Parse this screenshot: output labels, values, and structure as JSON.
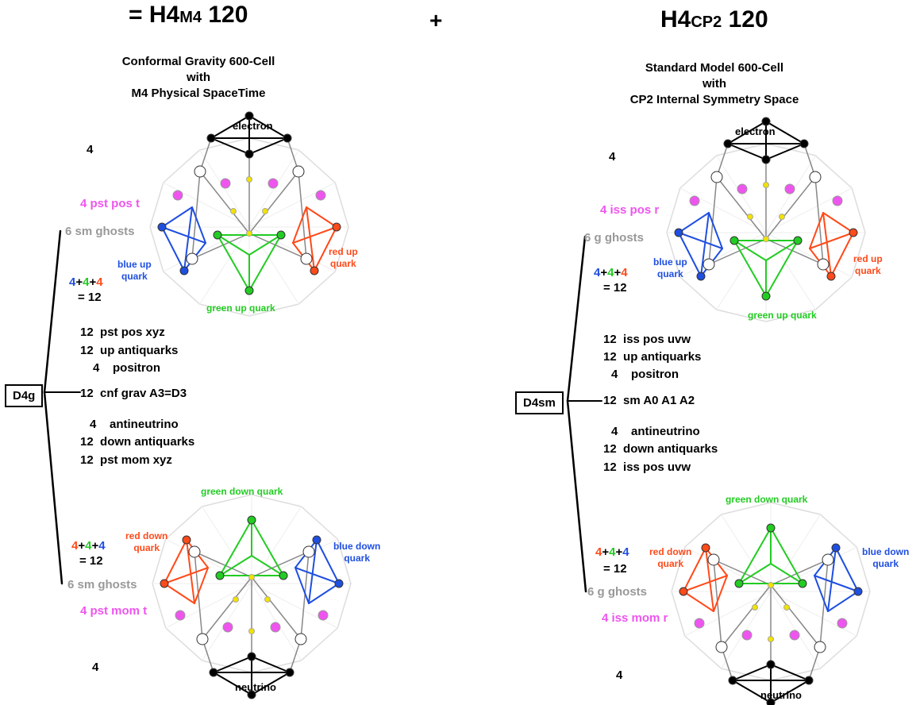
{
  "header": {
    "left_prefix": "= H4",
    "left_sub": "M4",
    "left_suffix": " 120",
    "plus": "+",
    "right_prefix": "H4",
    "right_sub": "CP2",
    "right_suffix": " 120"
  },
  "left": {
    "title_lines": [
      "Conformal Gravity 600-Cell",
      "with",
      "M4 Physical SpaceTime"
    ],
    "top_count": "4",
    "top_vertex": "electron",
    "pos_t": "4 pst pos t",
    "ghosts_top": "6 sm ghosts",
    "blue_up": [
      "blue up",
      "quark"
    ],
    "red_up": [
      "red up",
      "quark"
    ],
    "green_up": "green up quark",
    "sum_top": {
      "a": "4",
      "plus1": "+",
      "b": "4",
      "plus2": "+",
      "c": "4",
      "eq": "= 12"
    },
    "list_top": [
      {
        "n": "12",
        "t": "pst pos xyz"
      },
      {
        "n": "12",
        "t": "up antiquarks"
      },
      {
        "n": "4",
        "t": "positron"
      }
    ],
    "box": "D4g",
    "center": {
      "n": "12",
      "t": "cnf grav A3=D3"
    },
    "list_bottom": [
      {
        "n": "4",
        "t": "antineutrino"
      },
      {
        "n": "12",
        "t": "down antiquarks"
      },
      {
        "n": "12",
        "t": "pst mom xyz"
      }
    ],
    "green_down": "green down quark",
    "red_down": [
      "red down",
      "quark"
    ],
    "blue_down": [
      "blue down",
      "quark"
    ],
    "sum_bottom": {
      "a": "4",
      "plus1": "+",
      "b": "4",
      "plus2": "+",
      "c": "4",
      "eq": "= 12"
    },
    "ghosts_bottom": "6 sm ghosts",
    "mom_t": "4 pst mom t",
    "bottom_count": "4",
    "bottom_vertex": "neutrino"
  },
  "right": {
    "title_lines": [
      "Standard Model 600-Cell",
      "with",
      "CP2 Internal Symmetry Space"
    ],
    "top_count": "4",
    "top_vertex": "electron",
    "pos_r": "4 iss pos r",
    "ghosts_top": "6 g ghosts",
    "blue_up": [
      "blue up",
      "quark"
    ],
    "red_up": [
      "red up",
      "quark"
    ],
    "green_up": "green up quark",
    "sum_top": {
      "a": "4",
      "plus1": "+",
      "b": "4",
      "plus2": "+",
      "c": "4",
      "eq": "= 12"
    },
    "list_top": [
      {
        "n": "12",
        "t": "iss pos uvw"
      },
      {
        "n": "12",
        "t": "up antiquarks"
      },
      {
        "n": "4",
        "t": "positron"
      }
    ],
    "box": "D4sm",
    "center": {
      "n": "12",
      "t": "sm A0 A1 A2"
    },
    "list_bottom": [
      {
        "n": "4",
        "t": "antineutrino"
      },
      {
        "n": "12",
        "t": "down antiquarks"
      },
      {
        "n": "12",
        "t": "iss pos uvw"
      }
    ],
    "green_down": "green down quark",
    "red_down": [
      "red down",
      "quark"
    ],
    "blue_down": [
      "blue down",
      "quark"
    ],
    "sum_bottom": {
      "a": "4",
      "plus1": "+",
      "b": "4",
      "plus2": "+",
      "c": "4",
      "eq": "= 12"
    },
    "ghosts_bottom": "6 g ghosts",
    "mom_r": "4 iss mom r",
    "bottom_count": "4",
    "bottom_vertex": "neutrino"
  },
  "colors": {
    "blue": "#1f4fe0",
    "green": "#22cc22",
    "red": "#ff4a1a",
    "magenta": "#ee55ee",
    "ghost": "#999999",
    "yellow": "#f2e200",
    "black": "#000000"
  }
}
